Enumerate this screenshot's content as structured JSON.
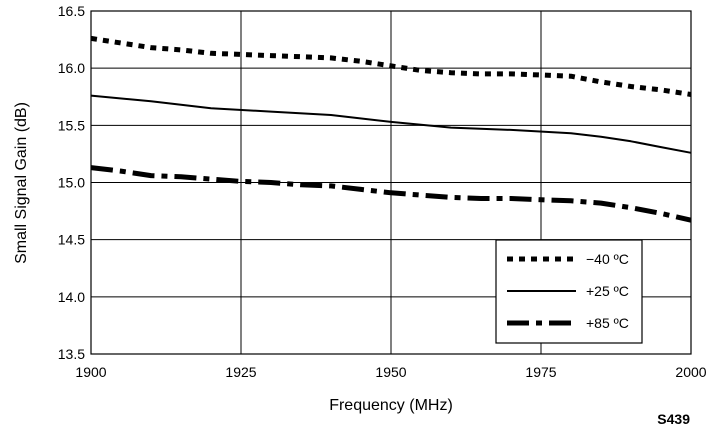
{
  "chart_data": {
    "type": "line",
    "xlabel": "Frequency (MHz)",
    "ylabel": "Small Signal Gain (dB)",
    "xlim": [
      1900,
      2000
    ],
    "ylim": [
      13.5,
      16.5
    ],
    "x_ticks": [
      "1900",
      "1925",
      "1950",
      "1975",
      "2000"
    ],
    "y_ticks": [
      "13.5",
      "14.0",
      "14.5",
      "15.0",
      "15.5",
      "16.0",
      "16.5"
    ],
    "grid": true,
    "legend_position": "bottom-right",
    "series": [
      {
        "name": "−40 ºC",
        "style": "dotted",
        "x": [
          1900,
          1905,
          1910,
          1915,
          1920,
          1925,
          1930,
          1935,
          1940,
          1945,
          1950,
          1955,
          1960,
          1965,
          1970,
          1975,
          1980,
          1985,
          1990,
          1995,
          2000
        ],
        "y": [
          16.26,
          16.22,
          16.18,
          16.16,
          16.13,
          16.12,
          16.11,
          16.1,
          16.09,
          16.06,
          16.02,
          15.98,
          15.96,
          15.95,
          15.95,
          15.94,
          15.93,
          15.88,
          15.84,
          15.81,
          15.77
        ]
      },
      {
        "name": "+25 ºC",
        "style": "solid",
        "x": [
          1900,
          1910,
          1920,
          1930,
          1940,
          1950,
          1960,
          1970,
          1980,
          1985,
          1990,
          1995,
          2000
        ],
        "y": [
          15.76,
          15.71,
          15.65,
          15.62,
          15.59,
          15.53,
          15.48,
          15.46,
          15.43,
          15.4,
          15.36,
          15.31,
          15.26
        ]
      },
      {
        "name": "+85 ºC",
        "style": "dash-dot",
        "x": [
          1900,
          1905,
          1910,
          1915,
          1920,
          1925,
          1930,
          1935,
          1940,
          1945,
          1950,
          1955,
          1960,
          1965,
          1970,
          1975,
          1980,
          1985,
          1990,
          1995,
          2000
        ],
        "y": [
          15.13,
          15.1,
          15.06,
          15.05,
          15.03,
          15.01,
          15.0,
          14.98,
          14.97,
          14.94,
          14.91,
          14.89,
          14.87,
          14.86,
          14.86,
          14.85,
          14.84,
          14.82,
          14.78,
          14.73,
          14.67
        ]
      }
    ]
  },
  "figure_code": "S439"
}
